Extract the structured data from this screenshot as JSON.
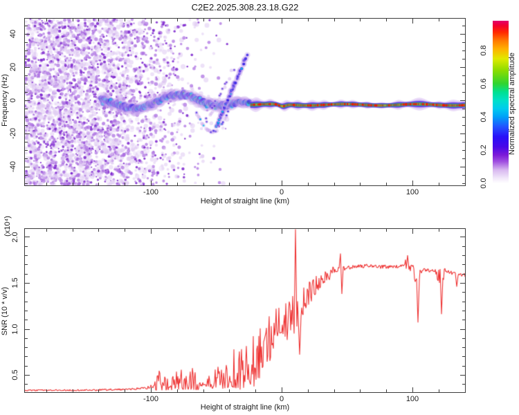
{
  "title": "C2E2.2025.308.23.18.G22",
  "colors": {
    "snr_line": "#ee3333",
    "axis": "#3a3a3a",
    "text": "#1a1a1a",
    "background": "#ffffff"
  },
  "chart_data": [
    {
      "type": "spectrogram",
      "xlabel": "Height of straight line (km)",
      "ylabel": "Frequency (Hz)",
      "xlim": [
        -196.3,
        140.2
      ],
      "ylim": [
        -51.25,
        49.17
      ],
      "xticks": {
        "major": [
          -100,
          0,
          100
        ],
        "minor_step": 20
      },
      "yticks": {
        "major": [
          -40,
          -20,
          0,
          20,
          40
        ],
        "minor_step": 5
      },
      "colorbar": {
        "label": "Normalized spectral amplitude",
        "ticks": [
          0.0,
          0.2,
          0.4,
          0.6,
          0.8
        ],
        "range": [
          0,
          1
        ],
        "colormap": [
          [
            0.0,
            "#ffffff"
          ],
          [
            0.03,
            "#f2e8fa"
          ],
          [
            0.08,
            "#d8b8f0"
          ],
          [
            0.13,
            "#a050e0"
          ],
          [
            0.17,
            "#7d1ad8"
          ],
          [
            0.22,
            "#4808e8"
          ],
          [
            0.28,
            "#2810f8"
          ],
          [
            0.34,
            "#2252ff"
          ],
          [
            0.4,
            "#00a0f8"
          ],
          [
            0.45,
            "#00ccee"
          ],
          [
            0.5,
            "#00e0c8"
          ],
          [
            0.55,
            "#00e090"
          ],
          [
            0.6,
            "#30d430"
          ],
          [
            0.68,
            "#8cdc00"
          ],
          [
            0.75,
            "#e0ea00"
          ],
          [
            0.81,
            "#ffb000"
          ],
          [
            0.86,
            "#ff7800"
          ],
          [
            0.91,
            "#ff2800"
          ],
          [
            0.95,
            "#f20030"
          ],
          [
            1.0,
            "#e2006e"
          ]
        ]
      },
      "features": {
        "noise_field": {
          "x_km": [
            -196,
            -40
          ],
          "freq_hz": [
            -51,
            49
          ],
          "amplitude": [
            0.02,
            0.25
          ],
          "density_profile": [
            [
              -196,
              0.95
            ],
            [
              -137,
              0.95
            ],
            [
              -98,
              0.4
            ],
            [
              -58,
              0.08
            ],
            [
              -40,
              0.02
            ]
          ]
        },
        "main_band": {
          "x_km": [
            -138,
            -24
          ],
          "center_hz": -1.5,
          "wander_hz": 4,
          "halfwidth_hz": 5,
          "amplitude": [
            0.2,
            0.65
          ]
        },
        "rising_branch": {
          "from_km_hz": [
            -50,
            -16
          ],
          "to_km_hz": [
            -26,
            28
          ],
          "amplitude": [
            0.1,
            0.45
          ]
        },
        "faint_branch": {
          "from_km_hz": [
            -58,
            -13
          ],
          "to_km_hz": [
            -36,
            20
          ],
          "amplitude": [
            0.05,
            0.25
          ]
        },
        "lower_arc": {
          "x_km": [
            -65,
            -41
          ],
          "dip_hz": -19,
          "amplitude": [
            0.05,
            0.3
          ]
        },
        "carrier_line": {
          "x_km": [
            -24,
            140.2
          ],
          "center_hz": -2.7,
          "core_amplitude": [
            0.85,
            1.0
          ],
          "halo_bulges": [
            [
              -20,
              0.85,
              3.5
            ],
            [
              -9,
              0.5,
              2.6
            ],
            [
              2.6,
              0.55,
              2.6
            ],
            [
              12,
              0.5,
              2.6
            ],
            [
              23,
              0.55,
              3
            ],
            [
              32,
              0.45,
              2.6
            ],
            [
              45,
              0.4,
              2.6
            ],
            [
              54,
              0.35,
              2.6
            ],
            [
              65,
              0.25,
              2.2
            ],
            [
              76,
              0.2,
              2.2
            ],
            [
              89,
              0.45,
              3
            ],
            [
              105,
              0.7,
              4.8
            ],
            [
              120,
              0.3,
              2.2
            ],
            [
              131,
              0.6,
              4.2
            ],
            [
              139,
              0.4,
              2.2
            ]
          ]
        }
      }
    },
    {
      "type": "line",
      "xlabel": "Height of straight line (km)",
      "ylabel": "SNR (10 * v/v)",
      "ylabel_exponent": "(x10⁴)",
      "xlim": [
        -196.3,
        140.2
      ],
      "ylim": [
        0.312,
        2.086
      ],
      "xticks": {
        "major": [
          -100,
          0,
          100
        ],
        "minor_step": 20
      },
      "yticks": {
        "major": [
          0.5,
          1.0,
          1.5,
          2.0
        ],
        "minor_step": 0.1
      },
      "line_color": "#ee3333",
      "envelope": [
        [
          -196,
          0.315,
          0.345
        ],
        [
          -150,
          0.315,
          0.35
        ],
        [
          -120,
          0.32,
          0.36
        ],
        [
          -105,
          0.325,
          0.38
        ],
        [
          -98,
          0.33,
          0.42
        ],
        [
          -94,
          0.33,
          0.57
        ],
        [
          -89,
          0.33,
          0.5
        ],
        [
          -85,
          0.33,
          0.42
        ],
        [
          -80,
          0.33,
          0.6
        ],
        [
          -74,
          0.34,
          0.62
        ],
        [
          -68,
          0.34,
          0.63
        ],
        [
          -63,
          0.33,
          0.45
        ],
        [
          -58,
          0.34,
          0.44
        ],
        [
          -53,
          0.35,
          0.55
        ],
        [
          -49,
          0.36,
          0.62
        ],
        [
          -45,
          0.35,
          0.55
        ],
        [
          -41,
          0.36,
          0.68
        ],
        [
          -37,
          0.36,
          0.78
        ],
        [
          -33,
          0.33,
          0.8
        ],
        [
          -29,
          0.35,
          0.88
        ],
        [
          -25,
          0.4,
          0.85
        ],
        [
          -21,
          0.35,
          0.95
        ],
        [
          -17,
          0.45,
          1.0
        ],
        [
          -13,
          0.55,
          1.1
        ],
        [
          -9,
          0.65,
          1.35
        ],
        [
          -6,
          0.8,
          1.25
        ],
        [
          -3,
          0.9,
          1.3
        ],
        [
          0,
          0.95,
          1.3
        ],
        [
          3,
          0.85,
          1.35
        ],
        [
          6,
          0.9,
          1.3
        ],
        [
          8,
          1.05,
          1.35
        ],
        [
          10,
          1.1,
          1.6
        ],
        [
          11,
          0.9,
          1.5
        ],
        [
          13,
          0.8,
          1.3
        ],
        [
          15,
          1.0,
          1.45
        ],
        [
          17,
          1.2,
          1.45
        ],
        [
          20,
          1.25,
          1.5
        ],
        [
          23,
          1.3,
          1.55
        ],
        [
          27,
          1.4,
          1.58
        ],
        [
          31,
          1.48,
          1.62
        ],
        [
          35,
          1.52,
          1.65
        ],
        [
          40,
          1.56,
          1.68
        ],
        [
          44,
          1.6,
          1.72
        ],
        [
          47,
          1.6,
          1.7
        ],
        [
          55,
          1.63,
          1.71
        ],
        [
          65,
          1.64,
          1.72
        ],
        [
          75,
          1.63,
          1.71
        ],
        [
          85,
          1.63,
          1.71
        ],
        [
          93,
          1.64,
          1.74
        ],
        [
          97,
          1.65,
          1.8
        ],
        [
          100,
          1.6,
          1.7
        ],
        [
          103,
          1.45,
          1.68
        ],
        [
          105,
          1.5,
          1.68
        ],
        [
          108,
          1.6,
          1.68
        ],
        [
          112,
          1.58,
          1.67
        ],
        [
          116,
          1.6,
          1.68
        ],
        [
          121,
          1.45,
          1.66
        ],
        [
          123,
          1.5,
          1.66
        ],
        [
          127,
          1.58,
          1.66
        ],
        [
          131,
          1.56,
          1.64
        ],
        [
          136,
          1.55,
          1.63
        ],
        [
          140,
          1.54,
          1.62
        ]
      ],
      "spikes": [
        [
          9.3,
          0.95
        ],
        [
          10.5,
          2.09
        ],
        [
          14,
          0.72
        ],
        [
          45.2,
          1.82
        ],
        [
          45.8,
          1.38
        ],
        [
          96.5,
          1.8
        ],
        [
          104,
          1.07
        ],
        [
          122,
          1.16
        ],
        [
          134,
          1.46
        ]
      ]
    }
  ]
}
